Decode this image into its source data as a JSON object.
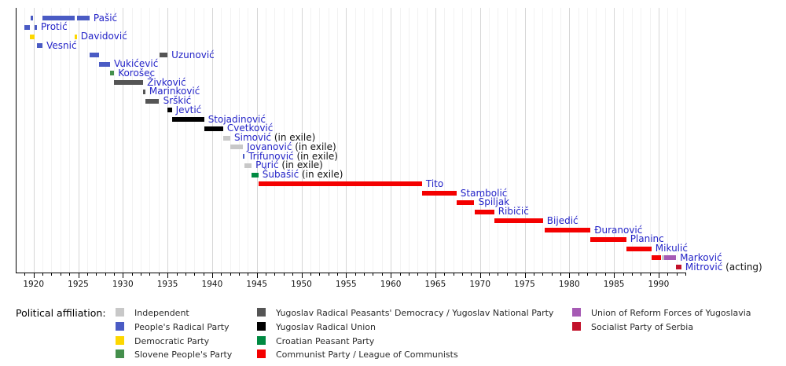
{
  "chart_data": {
    "type": "bar",
    "subtype": "gantt-timeline",
    "description": "Timeline of heads of government of Yugoslavia by political affiliation",
    "axis": {
      "start": 1918,
      "end": 1993,
      "tick_step": 5,
      "minor_step": 1,
      "tick_labels": [
        "1920",
        "1925",
        "1930",
        "1935",
        "1940",
        "1945",
        "1950",
        "1955",
        "1960",
        "1965",
        "1970",
        "1975",
        "1980",
        "1985",
        "1990"
      ],
      "grid": true
    },
    "label_color": "#2424c8",
    "suffix_color": "#111111",
    "parties": {
      "independent": {
        "label": "Independent",
        "color": "#c8c8c8"
      },
      "peoples_radical": {
        "label": "People's Radical Party",
        "color": "#4a5bc4"
      },
      "democratic": {
        "label": "Democratic Party",
        "color": "#fdd700"
      },
      "slovene_peoples": {
        "label": "Slovene People's Party",
        "color": "#448f4c"
      },
      "yrpd_ynp": {
        "label": "Yugoslav Radical Peasants' Democracy / Yugoslav National Party",
        "color": "#555555"
      },
      "yugoslav_radical_union": {
        "label": "Yugoslav Radical Union",
        "color": "#000000"
      },
      "croatian_peasant": {
        "label": "Croatian Peasant Party",
        "color": "#008a42"
      },
      "communist": {
        "label": "Communist Party / League of Communists",
        "color": "#f40000"
      },
      "reform_forces": {
        "label": "Union of Reform Forces of Yugoslavia",
        "color": "#a65ab4"
      },
      "socialist_serbia": {
        "label": "Socialist Party of Serbia",
        "color": "#c2112a"
      }
    },
    "rows": [
      {
        "name": "Pašić",
        "suffix": "",
        "segments": [
          {
            "start": 1919.7,
            "end": 1919.9,
            "party": "peoples_radical"
          },
          {
            "start": 1921.0,
            "end": 1924.57,
            "party": "peoples_radical"
          },
          {
            "start": 1924.85,
            "end": 1926.27,
            "party": "peoples_radical"
          }
        ]
      },
      {
        "name": "Protić",
        "suffix": "",
        "segments": [
          {
            "start": 1918.97,
            "end": 1919.6,
            "party": "peoples_radical"
          },
          {
            "start": 1920.12,
            "end": 1920.38,
            "party": "peoples_radical"
          }
        ]
      },
      {
        "name": "Davidović",
        "suffix": "",
        "segments": [
          {
            "start": 1919.6,
            "end": 1920.12,
            "party": "democratic"
          },
          {
            "start": 1924.58,
            "end": 1924.85,
            "party": "democratic"
          }
        ]
      },
      {
        "name": "Vesnić",
        "suffix": "",
        "segments": [
          {
            "start": 1920.38,
            "end": 1921.0,
            "party": "peoples_radical"
          }
        ]
      },
      {
        "name": "Uzunović",
        "suffix": "",
        "segments": [
          {
            "start": 1926.27,
            "end": 1927.3,
            "party": "peoples_radical"
          },
          {
            "start": 1934.07,
            "end": 1935.0,
            "party": "yrpd_ynp"
          }
        ]
      },
      {
        "name": "Vukićević",
        "suffix": "",
        "segments": [
          {
            "start": 1927.3,
            "end": 1928.56,
            "party": "peoples_radical"
          }
        ]
      },
      {
        "name": "Korošec",
        "suffix": "",
        "segments": [
          {
            "start": 1928.56,
            "end": 1929.02,
            "party": "slovene_peoples"
          }
        ]
      },
      {
        "name": "Živković",
        "suffix": "",
        "segments": [
          {
            "start": 1929.02,
            "end": 1932.27,
            "party": "yrpd_ynp"
          }
        ]
      },
      {
        "name": "Marinković",
        "suffix": "",
        "segments": [
          {
            "start": 1932.27,
            "end": 1932.52,
            "party": "yrpd_ynp"
          }
        ]
      },
      {
        "name": "Srškić",
        "suffix": "",
        "segments": [
          {
            "start": 1932.52,
            "end": 1934.07,
            "party": "yrpd_ynp"
          }
        ]
      },
      {
        "name": "Jevtić",
        "suffix": "",
        "segments": [
          {
            "start": 1934.97,
            "end": 1935.48,
            "party": "yugoslav_radical_union"
          }
        ]
      },
      {
        "name": "Stojadinović",
        "suffix": "",
        "segments": [
          {
            "start": 1935.48,
            "end": 1939.1,
            "party": "yugoslav_radical_union"
          }
        ]
      },
      {
        "name": "Cvetković",
        "suffix": "",
        "segments": [
          {
            "start": 1939.1,
            "end": 1941.23,
            "party": "yugoslav_radical_union"
          }
        ]
      },
      {
        "name": "Simović",
        "suffix": "(in exile)",
        "segments": [
          {
            "start": 1941.23,
            "end": 1942.03,
            "party": "independent"
          }
        ]
      },
      {
        "name": "Jovanović",
        "suffix": "(in exile)",
        "segments": [
          {
            "start": 1942.03,
            "end": 1943.45,
            "party": "independent"
          }
        ]
      },
      {
        "name": "Trifunović",
        "suffix": "(in exile)",
        "segments": [
          {
            "start": 1943.45,
            "end": 1943.62,
            "party": "peoples_radical"
          }
        ]
      },
      {
        "name": "Purić",
        "suffix": "(in exile)",
        "segments": [
          {
            "start": 1943.62,
            "end": 1944.42,
            "party": "independent"
          }
        ]
      },
      {
        "name": "Šubašić",
        "suffix": "(in exile)",
        "segments": [
          {
            "start": 1944.42,
            "end": 1945.18,
            "party": "croatian_peasant"
          }
        ]
      },
      {
        "name": "Tito",
        "suffix": "",
        "segments": [
          {
            "start": 1945.18,
            "end": 1963.5,
            "party": "communist"
          }
        ]
      },
      {
        "name": "Stambolić",
        "suffix": "",
        "segments": [
          {
            "start": 1963.5,
            "end": 1967.37,
            "party": "communist"
          }
        ]
      },
      {
        "name": "Špiljak",
        "suffix": "",
        "segments": [
          {
            "start": 1967.37,
            "end": 1969.37,
            "party": "communist"
          }
        ]
      },
      {
        "name": "Ribičič",
        "suffix": "",
        "segments": [
          {
            "start": 1969.37,
            "end": 1971.58,
            "party": "communist"
          }
        ]
      },
      {
        "name": "Bijedić",
        "suffix": "",
        "segments": [
          {
            "start": 1971.58,
            "end": 1977.05,
            "party": "communist"
          }
        ]
      },
      {
        "name": "Đuranović",
        "suffix": "",
        "segments": [
          {
            "start": 1977.2,
            "end": 1982.37,
            "party": "communist"
          }
        ]
      },
      {
        "name": "Planinc",
        "suffix": "",
        "segments": [
          {
            "start": 1982.37,
            "end": 1986.37,
            "party": "communist"
          }
        ]
      },
      {
        "name": "Mikulić",
        "suffix": "",
        "segments": [
          {
            "start": 1986.37,
            "end": 1989.2,
            "party": "communist"
          }
        ]
      },
      {
        "name": "Marković",
        "suffix": "",
        "segments": [
          {
            "start": 1989.2,
            "end": 1990.3,
            "party": "communist"
          },
          {
            "start": 1990.38,
            "end": 1990.62,
            "party": "independent"
          },
          {
            "start": 1990.62,
            "end": 1991.95,
            "party": "reform_forces"
          }
        ]
      },
      {
        "name": "Mitrović",
        "suffix": "(acting)",
        "segments": [
          {
            "start": 1991.95,
            "end": 1992.55,
            "party": "socialist_serbia"
          }
        ]
      }
    ],
    "legend": {
      "title": "Political affiliation:",
      "columns": [
        [
          "independent",
          "peoples_radical",
          "democratic",
          "slovene_peoples"
        ],
        [
          "yrpd_ynp",
          "yugoslav_radical_union",
          "croatian_peasant",
          "communist"
        ],
        [
          "reform_forces",
          "socialist_serbia"
        ]
      ]
    }
  }
}
